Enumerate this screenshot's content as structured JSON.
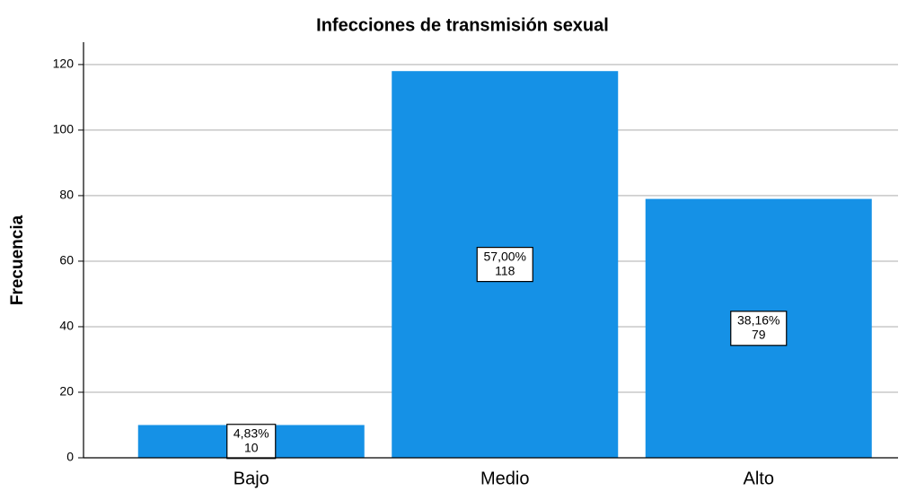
{
  "chart_data": {
    "type": "bar",
    "title": "Infecciones de transmisión sexual",
    "y_label": "Frecuencia",
    "categories": [
      "Bajo",
      "Medio",
      "Alto"
    ],
    "values": [
      10,
      118,
      79
    ],
    "percent_labels": [
      "4,83%",
      "57,00%",
      "38,16%"
    ],
    "color": "#1591e6",
    "ylim": [
      0,
      126
    ],
    "yticks": [
      0,
      20,
      40,
      60,
      80,
      100,
      120
    ],
    "grid": true
  }
}
